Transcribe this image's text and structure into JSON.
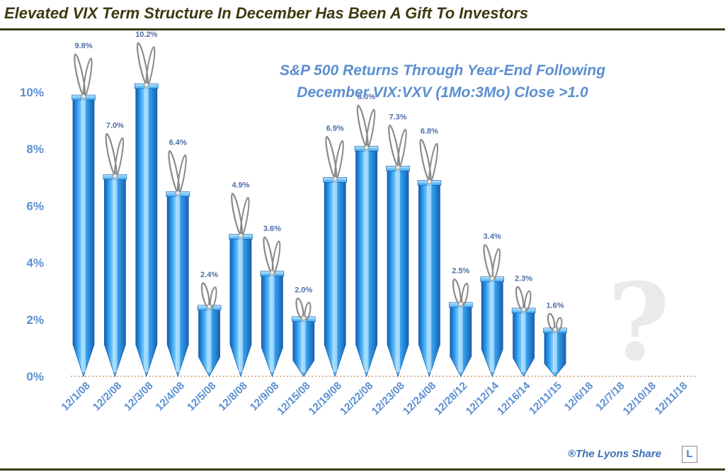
{
  "title": "Elevated VIX Term Structure In December Has Been A Gift To Investors",
  "credit": {
    "text": "®The Lyons Share",
    "logo": "L"
  },
  "chart_data": {
    "type": "bar",
    "title": "S&P 500 Returns Through Year-End Following December VIX:VXV (1Mo:3Mo) Close >1.0",
    "title_lines": [
      "S&P 500 Returns Through Year-End Following",
      "December VIX:VXV (1Mo:3Mo) Close >1.0"
    ],
    "xlabel": "",
    "ylabel": "",
    "ylim": [
      0,
      10.5
    ],
    "yticks": [
      "0%",
      "2%",
      "4%",
      "6%",
      "8%",
      "10%"
    ],
    "ytick_values": [
      0,
      2,
      4,
      6,
      8,
      10
    ],
    "categories": [
      "12/1/08",
      "12/2/08",
      "12/3/08",
      "12/4/08",
      "12/5/08",
      "12/8/08",
      "12/9/08",
      "12/15/08",
      "12/19/08",
      "12/22/08",
      "12/23/08",
      "12/24/08",
      "12/28/12",
      "12/12/14",
      "12/16/14",
      "12/11/15",
      "12/6/18",
      "12/7/18",
      "12/10/18",
      "12/11/18"
    ],
    "values": [
      9.8,
      7.0,
      10.2,
      6.4,
      2.4,
      4.9,
      3.6,
      2.0,
      6.9,
      8.0,
      7.3,
      6.8,
      2.5,
      3.4,
      2.3,
      1.6,
      null,
      null,
      null,
      null
    ],
    "labels": [
      "9.8%",
      "7.0%",
      "10.2%",
      "6.4%",
      "2.4%",
      "4.9%",
      "3.6%",
      "2.0%",
      "6.9%",
      "8.0%",
      "7.3%",
      "6.8%",
      "2.5%",
      "3.4%",
      "2.3%",
      "1.6%",
      "",
      "",
      "",
      ""
    ],
    "annotation": "?",
    "bar_color": "#2e9be6",
    "ribbon_color": "#8a8a8a",
    "label_color": "#4f6fa8",
    "axis_color": "#5b8fd0"
  }
}
